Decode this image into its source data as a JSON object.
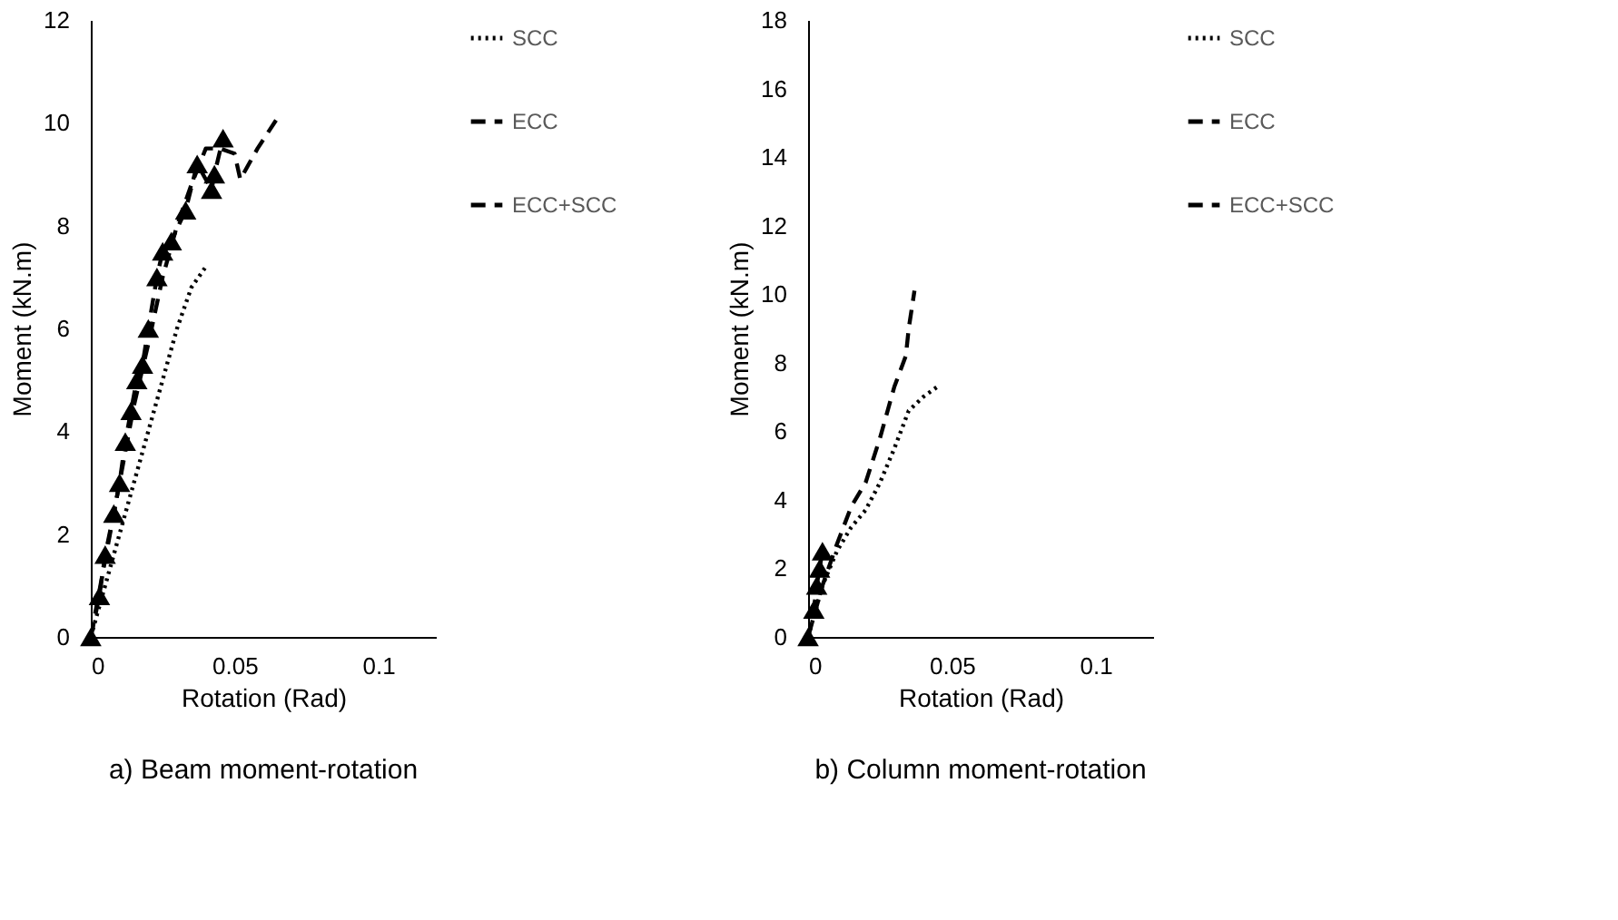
{
  "chart_data": [
    {
      "type": "line",
      "xlabel": "Rotation (Rad)",
      "ylabel": "Moment (kN.m)",
      "annotations": [
        "a) Beam moment-rotation"
      ],
      "xlim": [
        0,
        0.12
      ],
      "xticks": [
        0,
        0.05,
        0.1
      ],
      "ylim": [
        0,
        12
      ],
      "yticks": [
        0,
        2,
        4,
        6,
        8,
        10,
        12
      ],
      "grid": false,
      "legend": "right",
      "series": [
        {
          "name": "SCC",
          "color": "#000000",
          "line_style": "dotted",
          "marker": "none",
          "x": [
            0,
            0.005,
            0.01,
            0.015,
            0.02,
            0.025,
            0.03,
            0.035,
            0.04
          ],
          "values": [
            0,
            1,
            2,
            3,
            4,
            5,
            6,
            6.8,
            7.2
          ]
        },
        {
          "name": "ECC",
          "color": "#000000",
          "line_style": "dashed",
          "marker": "none",
          "x": [
            0,
            0.005,
            0.01,
            0.015,
            0.02,
            0.025,
            0.03,
            0.035,
            0.04,
            0.045,
            0.05,
            0.052,
            0.058,
            0.065
          ],
          "values": [
            0,
            1.5,
            3,
            4.5,
            5.7,
            7,
            8,
            8.8,
            9.5,
            9.5,
            9.4,
            8.9,
            9.5,
            10.1
          ]
        },
        {
          "name": "ECC+SCC",
          "color": "#000000",
          "line_style": "dashed",
          "marker": "triangle",
          "x": [
            0,
            0.003,
            0.005,
            0.008,
            0.01,
            0.012,
            0.014,
            0.016,
            0.018,
            0.02,
            0.023,
            0.025,
            0.028,
            0.033,
            0.037,
            0.042,
            0.043,
            0.046
          ],
          "values": [
            0,
            0.8,
            1.6,
            2.4,
            3,
            3.8,
            4.4,
            5,
            5.3,
            6,
            7,
            7.5,
            7.7,
            8.3,
            9.2,
            8.7,
            9,
            9.7
          ]
        }
      ]
    },
    {
      "type": "line",
      "xlabel": "Rotation (Rad)",
      "ylabel": "Moment (kN.m)",
      "annotations": [
        "b) Column moment-rotation"
      ],
      "xlim": [
        0,
        0.12
      ],
      "xticks": [
        0,
        0.05,
        0.1
      ],
      "ylim": [
        0,
        18
      ],
      "yticks": [
        0,
        2,
        4,
        6,
        8,
        10,
        12,
        14,
        16,
        18
      ],
      "grid": false,
      "legend": "right",
      "series": [
        {
          "name": "SCC",
          "color": "#000000",
          "line_style": "dotted",
          "marker": "none",
          "x": [
            0,
            0.005,
            0.01,
            0.015,
            0.02,
            0.025,
            0.03,
            0.035,
            0.04,
            0.045
          ],
          "values": [
            0,
            1.5,
            2.5,
            3.2,
            3.7,
            4.5,
            5.5,
            6.6,
            7,
            7.3
          ]
        },
        {
          "name": "ECC",
          "color": "#000000",
          "line_style": "dashed",
          "marker": "none",
          "x": [
            0,
            0.005,
            0.01,
            0.015,
            0.02,
            0.025,
            0.03,
            0.034,
            0.035,
            0.037
          ],
          "values": [
            0,
            1.5,
            2.7,
            3.8,
            4.5,
            5.8,
            7.3,
            8.2,
            9,
            10.1
          ]
        },
        {
          "name": "ECC+SCC",
          "color": "#000000",
          "line_style": "dashed",
          "marker": "triangle",
          "x": [
            0,
            0.002,
            0.003,
            0.004,
            0.005
          ],
          "values": [
            0,
            0.8,
            1.5,
            2,
            2.5
          ]
        }
      ]
    }
  ]
}
